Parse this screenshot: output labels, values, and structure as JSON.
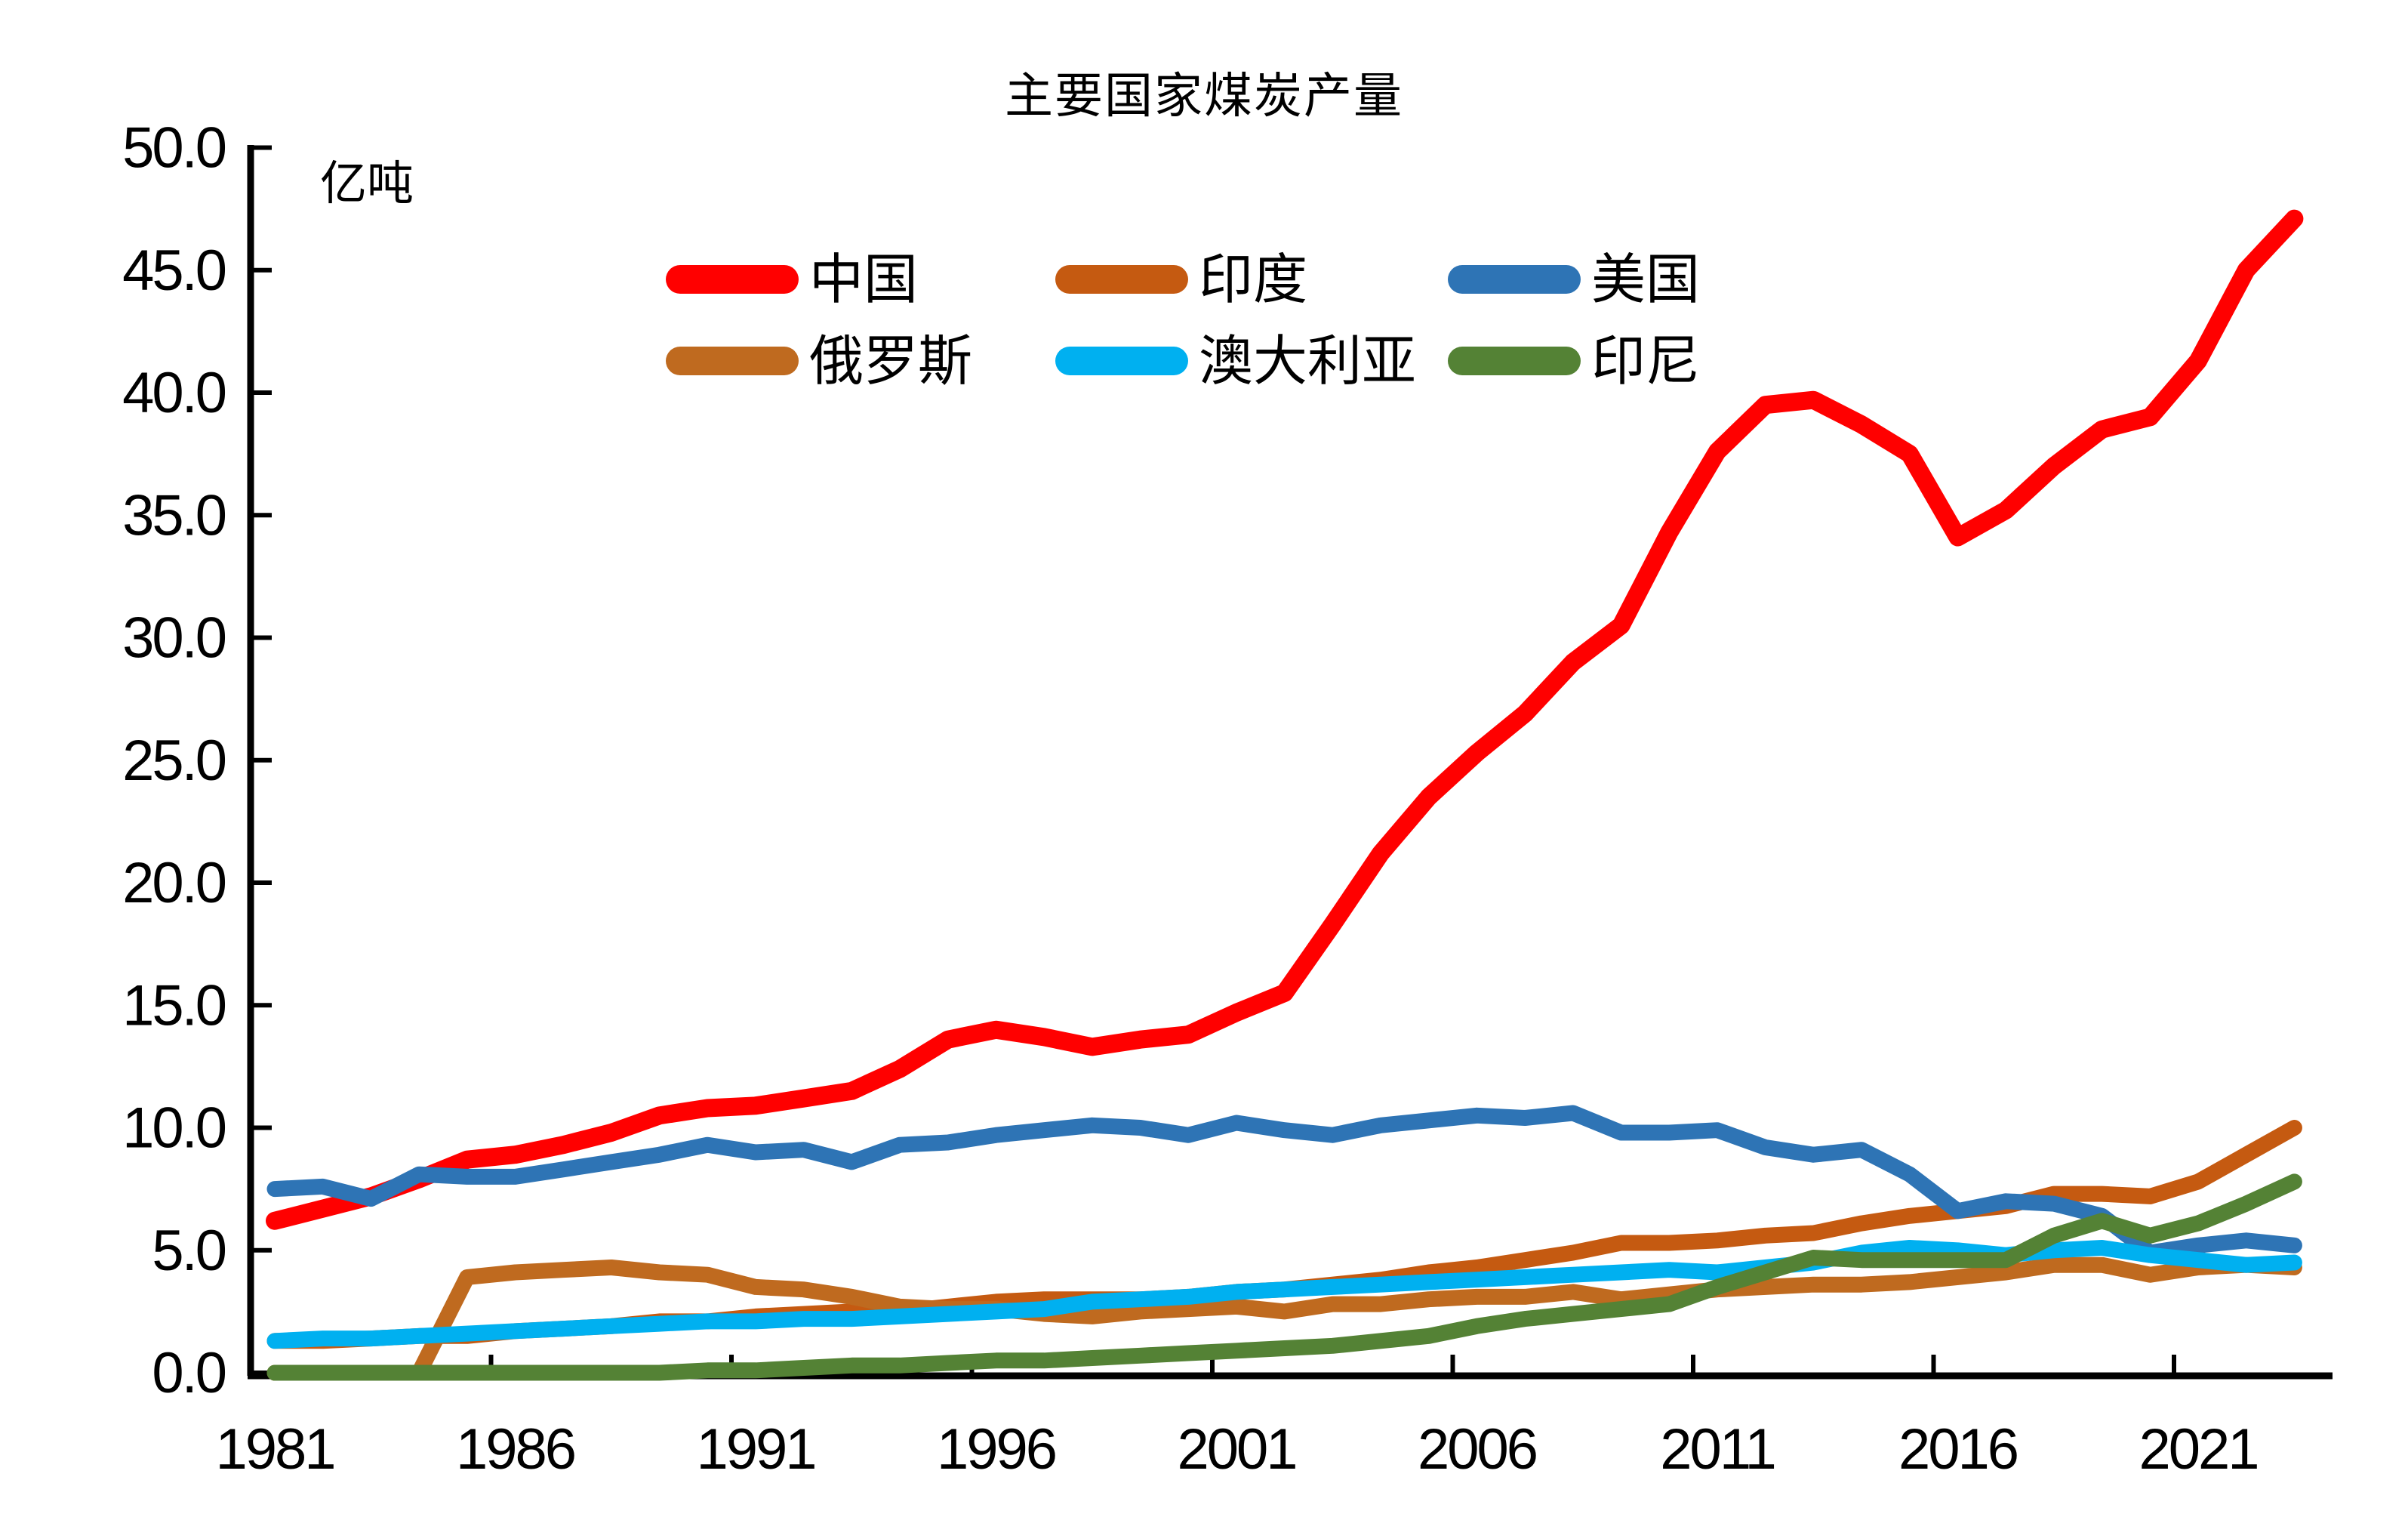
{
  "chart_data": {
    "type": "line",
    "title": "主要国家煤炭产量",
    "unit_label": "亿吨",
    "xlabel": "",
    "ylabel": "",
    "ylim": [
      0,
      50
    ],
    "ytick_step": 5,
    "grid": false,
    "legend_position": "top-center-two-rows",
    "x_range": [
      1981,
      2023
    ],
    "x": [
      1981,
      1982,
      1983,
      1984,
      1985,
      1986,
      1987,
      1988,
      1989,
      1990,
      1991,
      1992,
      1993,
      1994,
      1995,
      1996,
      1997,
      1998,
      1999,
      2000,
      2001,
      2002,
      2003,
      2004,
      2005,
      2006,
      2007,
      2008,
      2009,
      2010,
      2011,
      2012,
      2013,
      2014,
      2015,
      2016,
      2017,
      2018,
      2019,
      2020,
      2021,
      2022,
      2023
    ],
    "xtick_labels": [
      "1981",
      "1986",
      "1991",
      "1996",
      "2001",
      "2006",
      "2011",
      "2016",
      "2021"
    ],
    "ytick_labels": [
      "0.0",
      "5.0",
      "10.0",
      "15.0",
      "20.0",
      "25.0",
      "30.0",
      "35.0",
      "40.0",
      "45.0",
      "50.0"
    ],
    "series": [
      {
        "id": "china",
        "name": "中国",
        "color": "#FF0000",
        "values": [
          6.2,
          6.7,
          7.2,
          7.9,
          8.7,
          8.9,
          9.3,
          9.8,
          10.5,
          10.8,
          10.9,
          11.2,
          11.5,
          12.4,
          13.6,
          14.0,
          13.7,
          13.3,
          13.6,
          13.8,
          14.7,
          15.5,
          18.3,
          21.2,
          23.5,
          25.3,
          26.9,
          29.0,
          30.5,
          34.3,
          37.6,
          39.5,
          39.7,
          38.7,
          37.5,
          34.1,
          35.2,
          37.0,
          38.5,
          39.0,
          41.3,
          45.0,
          47.1
        ]
      },
      {
        "id": "india",
        "name": "印度",
        "color": "#C55A11",
        "values": [
          1.3,
          1.3,
          1.4,
          1.5,
          1.5,
          1.7,
          1.8,
          1.9,
          2.1,
          2.1,
          2.3,
          2.4,
          2.5,
          2.5,
          2.7,
          2.9,
          3.0,
          3.0,
          3.0,
          3.1,
          3.3,
          3.4,
          3.6,
          3.8,
          4.1,
          4.3,
          4.6,
          4.9,
          5.3,
          5.3,
          5.4,
          5.6,
          5.7,
          6.1,
          6.4,
          6.6,
          6.8,
          7.3,
          7.3,
          7.2,
          7.8,
          8.9,
          10.0
        ]
      },
      {
        "id": "usa",
        "name": "美国",
        "color": "#2E74B5",
        "values": [
          7.5,
          7.6,
          7.1,
          8.1,
          8.0,
          8.0,
          8.3,
          8.6,
          8.9,
          9.3,
          9.0,
          9.1,
          8.6,
          9.3,
          9.4,
          9.7,
          9.9,
          10.1,
          10.0,
          9.7,
          10.2,
          9.9,
          9.7,
          10.1,
          10.3,
          10.5,
          10.4,
          10.6,
          9.8,
          9.8,
          9.9,
          9.2,
          8.9,
          9.1,
          8.1,
          6.6,
          7.0,
          6.9,
          6.4,
          4.9,
          5.2,
          5.4,
          5.2
        ]
      },
      {
        "id": "russia",
        "name": "俄罗斯",
        "color": "#BF6A1F",
        "values": [
          0.0,
          0.0,
          0.0,
          0.0,
          3.9,
          4.1,
          4.2,
          4.3,
          4.1,
          4.0,
          3.5,
          3.4,
          3.1,
          2.7,
          2.6,
          2.6,
          2.4,
          2.3,
          2.5,
          2.6,
          2.7,
          2.5,
          2.8,
          2.8,
          3.0,
          3.1,
          3.1,
          3.3,
          3.0,
          3.2,
          3.4,
          3.5,
          3.6,
          3.6,
          3.7,
          3.9,
          4.1,
          4.4,
          4.4,
          4.0,
          4.3,
          4.4,
          4.3
        ]
      },
      {
        "id": "australia",
        "name": "澳大利亚",
        "color": "#00B0F0",
        "values": [
          1.3,
          1.4,
          1.4,
          1.5,
          1.6,
          1.7,
          1.8,
          1.9,
          2.0,
          2.1,
          2.1,
          2.2,
          2.2,
          2.3,
          2.4,
          2.5,
          2.6,
          2.9,
          3.0,
          3.1,
          3.3,
          3.4,
          3.5,
          3.6,
          3.7,
          3.8,
          3.9,
          4.0,
          4.1,
          4.2,
          4.1,
          4.3,
          4.5,
          4.9,
          5.1,
          5.0,
          4.8,
          5.0,
          5.1,
          4.8,
          4.6,
          4.4,
          4.5
        ]
      },
      {
        "id": "indonesia",
        "name": "印尼",
        "color": "#548235",
        "values": [
          0.0,
          0.0,
          0.0,
          0.0,
          0.0,
          0.0,
          0.0,
          0.0,
          0.0,
          0.1,
          0.1,
          0.2,
          0.3,
          0.3,
          0.4,
          0.5,
          0.5,
          0.6,
          0.7,
          0.8,
          0.9,
          1.0,
          1.1,
          1.3,
          1.5,
          1.9,
          2.2,
          2.4,
          2.6,
          2.8,
          3.5,
          4.1,
          4.7,
          4.6,
          4.6,
          4.6,
          4.6,
          5.6,
          6.2,
          5.6,
          6.1,
          6.9,
          7.8
        ]
      }
    ]
  }
}
